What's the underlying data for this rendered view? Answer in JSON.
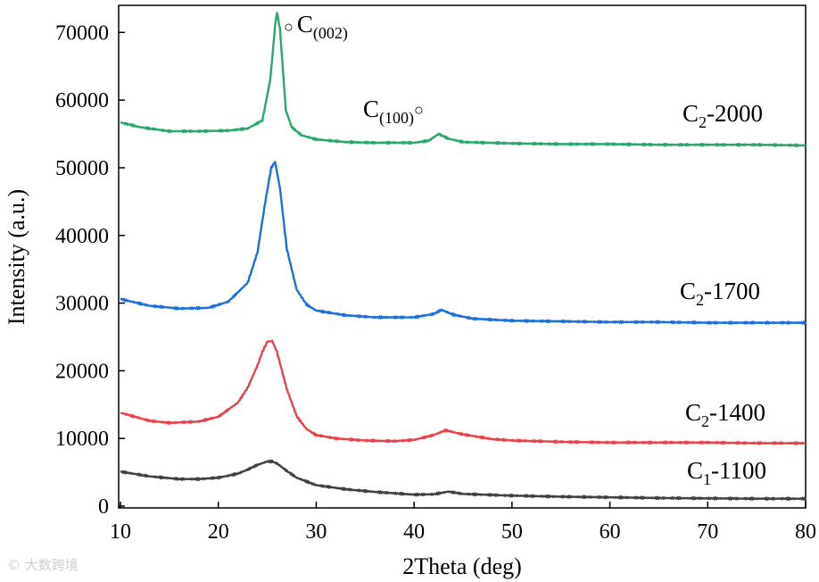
{
  "chart_data": {
    "type": "line",
    "xlabel": "2Theta (deg)",
    "ylabel": "Intensity (a.u.)",
    "xlim": [
      10,
      80
    ],
    "ylim": [
      0,
      74000
    ],
    "xticks": [
      10,
      20,
      30,
      40,
      50,
      60,
      70,
      80
    ],
    "yticks": [
      0,
      10000,
      20000,
      30000,
      40000,
      50000,
      60000,
      70000
    ],
    "grid": false,
    "series": [
      {
        "name": "C1-1100",
        "label_main": "C",
        "label_sub": "1",
        "label_tail": "-1100",
        "color": "#404040",
        "x": [
          10,
          13,
          16,
          18,
          20,
          22,
          23,
          24,
          25,
          25.5,
          26,
          27,
          28,
          30,
          33,
          36,
          40,
          42,
          43.5,
          45,
          50,
          55,
          60,
          65,
          70,
          75,
          80
        ],
        "y": [
          5100,
          4400,
          4000,
          4000,
          4200,
          4800,
          5400,
          6100,
          6600,
          6600,
          6300,
          5200,
          4200,
          3100,
          2500,
          2100,
          1700,
          1750,
          2150,
          1800,
          1550,
          1400,
          1300,
          1200,
          1150,
          1100,
          1100
        ]
      },
      {
        "name": "C2-1400",
        "label_main": "C",
        "label_sub": "2",
        "label_tail": "-1400",
        "color": "#e8434a",
        "x": [
          10,
          13,
          15,
          18,
          20,
          22,
          23,
          24,
          24.5,
          25,
          25.5,
          26,
          27,
          28,
          29,
          30,
          32,
          35,
          38,
          40,
          42,
          43.2,
          45,
          48,
          50,
          55,
          60,
          65,
          70,
          75,
          80
        ],
        "y": [
          13800,
          12600,
          12300,
          12500,
          13200,
          15300,
          17500,
          20800,
          22800,
          24300,
          24400,
          22800,
          17300,
          13300,
          11400,
          10500,
          10000,
          9700,
          9600,
          9800,
          10500,
          11200,
          10600,
          9900,
          9700,
          9500,
          9400,
          9400,
          9400,
          9300,
          9300
        ]
      },
      {
        "name": "C2-1700",
        "label_main": "C",
        "label_sub": "2",
        "label_tail": "-1700",
        "color": "#1e6fd9",
        "x": [
          10,
          13,
          16,
          19,
          21,
          23,
          24,
          24.8,
          25.4,
          25.8,
          26.3,
          27,
          28,
          29,
          30,
          33,
          36,
          40,
          42,
          42.8,
          44,
          46,
          50,
          55,
          60,
          65,
          70,
          75,
          80
        ],
        "y": [
          30600,
          29600,
          29200,
          29300,
          30200,
          33000,
          37500,
          45000,
          50000,
          50900,
          47000,
          38000,
          32000,
          29800,
          28900,
          28200,
          27900,
          27900,
          28400,
          29000,
          28300,
          27700,
          27400,
          27300,
          27200,
          27200,
          27100,
          27100,
          27100
        ]
      },
      {
        "name": "C2-2000",
        "label_main": "C",
        "label_sub": "2",
        "label_tail": "-2000",
        "color": "#2aa86b",
        "x": [
          10,
          12,
          15,
          18,
          21,
          23,
          24.5,
          25.3,
          25.8,
          26,
          26.3,
          26.9,
          27.5,
          28.5,
          30,
          33,
          36,
          40,
          41.5,
          42.5,
          43.5,
          45,
          50,
          55,
          60,
          65,
          70,
          75,
          80
        ],
        "y": [
          56700,
          56000,
          55400,
          55400,
          55500,
          55800,
          57000,
          63000,
          71000,
          73000,
          70500,
          58500,
          56000,
          54800,
          54200,
          53800,
          53700,
          53700,
          54000,
          55000,
          54300,
          53800,
          53600,
          53500,
          53500,
          53400,
          53400,
          53400,
          53300
        ]
      }
    ],
    "annotations": [
      {
        "marker": "○",
        "main": "C",
        "sub": "(002)",
        "x": 26.2,
        "y": 72000
      },
      {
        "marker": "○",
        "main": "C",
        "sub": "(100)",
        "x": 42.5,
        "y": 58000
      }
    ]
  },
  "watermark": "© 大数跨境"
}
